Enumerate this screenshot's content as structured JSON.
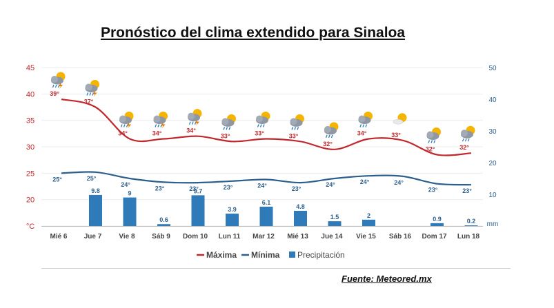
{
  "page": {
    "title": "Pronóstico del clima extendido para Sinaloa",
    "source": "Fuente: Meteored.mx"
  },
  "chart_data": {
    "type": "line",
    "categories": [
      "Mié 6",
      "Jue 7",
      "Vie 8",
      "Sáb 9",
      "Dom 10",
      "Lun 11",
      "Mar 12",
      "Mié 13",
      "Jue 14",
      "Vie 15",
      "Sáb 16",
      "Dom 17",
      "Lun 18"
    ],
    "series": [
      {
        "name": "Máxima",
        "type": "line",
        "axis": "left",
        "color": "#c0282d",
        "values": [
          39,
          37,
          34,
          34,
          34,
          33,
          33,
          33,
          32,
          34,
          33,
          32,
          32
        ],
        "labels": [
          "39°",
          "37°",
          "34°",
          "34°",
          "34°",
          "33°",
          "33°",
          "33°",
          "32°",
          "34°",
          "33°",
          "32°",
          "32°"
        ],
        "line_values": [
          39,
          37.5,
          31.5,
          31.5,
          32,
          31,
          31.5,
          31,
          29.5,
          31.5,
          31.2,
          28.5,
          28.8
        ]
      },
      {
        "name": "Mínima",
        "type": "line",
        "axis": "left",
        "color": "#2c5f8d",
        "values": [
          25,
          25,
          24,
          23,
          23,
          23,
          24,
          23,
          24,
          24,
          24,
          23,
          23
        ],
        "labels": [
          "25°",
          "25°",
          "24°",
          "23°",
          "23°",
          "23°",
          "24°",
          "23°",
          "24°",
          "24°",
          "24°",
          "23°",
          "23°"
        ],
        "line_values": [
          25,
          25.2,
          24,
          23.3,
          23.2,
          23.5,
          23.8,
          23.2,
          24,
          24.5,
          24.4,
          23,
          22.8
        ]
      },
      {
        "name": "Precipitación",
        "type": "bar",
        "axis": "right",
        "color": "#2f7ab8",
        "values": [
          0,
          9.8,
          9,
          0.6,
          9.7,
          3.9,
          6.1,
          4.8,
          1.5,
          2,
          0,
          0.9,
          0.2
        ],
        "labels": [
          "",
          "9.8",
          "9",
          "0.6",
          "9.7",
          "3.9",
          "6.1",
          "4.8",
          "1.5",
          "2",
          "",
          "0.9",
          "0.2"
        ]
      }
    ],
    "y_left": {
      "ticks": [
        "45",
        "40",
        "35",
        "30",
        "25",
        "20",
        "°C"
      ],
      "range": [
        15,
        45
      ],
      "color": "#c0282d"
    },
    "y_right": {
      "ticks": [
        "50",
        "40",
        "30",
        "20",
        "10",
        "mm"
      ],
      "range": [
        0,
        50
      ],
      "color": "#2c5f8d"
    },
    "icons": [
      "storm-cloud-icon",
      "storm-cloud-icon",
      "storm-cloud-icon",
      "storm-cloud-icon",
      "storm-cloud-icon",
      "sun-cloud-icon",
      "sun-cloud-icon",
      "sun-cloud-icon",
      "sun-cloud-icon",
      "sun-cloud-icon",
      "sun-cloud-icon",
      "sun-cloud-icon",
      "sun-cloud-icon"
    ],
    "icon_rain": [
      true,
      true,
      true,
      true,
      true,
      true,
      true,
      true,
      true,
      true,
      false,
      true,
      true
    ],
    "legend": {
      "placement": "bottom",
      "labels": [
        "Máxima",
        "Mínima",
        "Precipitación"
      ]
    },
    "grid": true
  }
}
